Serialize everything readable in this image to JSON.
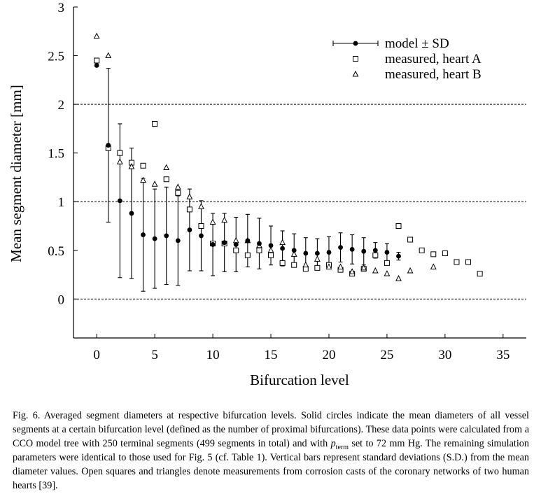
{
  "chart_data": {
    "type": "scatter",
    "xlabel": "Bifurcation level",
    "ylabel": "Mean segment diameter  [mm]",
    "xlim": [
      -2,
      37
    ],
    "ylim": [
      -0.4,
      3
    ],
    "x_ticks": [
      0,
      5,
      10,
      15,
      20,
      25,
      30,
      35
    ],
    "y_ticks": [
      0,
      0.5,
      1,
      1.5,
      2,
      2.5,
      3
    ],
    "y_tick_labels": [
      "0",
      "0.5",
      "1",
      "1.5",
      "2",
      "2.5",
      "3"
    ],
    "reference_lines": [
      0,
      1,
      2
    ],
    "legend": {
      "position": "top-right"
    },
    "series": [
      {
        "name": "model ± SD",
        "marker": "filled-circle",
        "points": [
          {
            "x": 0,
            "y": 2.4,
            "sd": 0
          },
          {
            "x": 1,
            "y": 1.58,
            "sd": 0.79
          },
          {
            "x": 2,
            "y": 1.01,
            "sd": 0.79
          },
          {
            "x": 3,
            "y": 0.88,
            "sd": 0.67
          },
          {
            "x": 4,
            "y": 0.66,
            "sd": 0.58
          },
          {
            "x": 5,
            "y": 0.62,
            "sd": 0.51
          },
          {
            "x": 6,
            "y": 0.65,
            "sd": 0.5
          },
          {
            "x": 7,
            "y": 0.6,
            "sd": 0.46
          },
          {
            "x": 8,
            "y": 0.71,
            "sd": 0.42
          },
          {
            "x": 9,
            "y": 0.65,
            "sd": 0.36
          },
          {
            "x": 10,
            "y": 0.56,
            "sd": 0.32
          },
          {
            "x": 11,
            "y": 0.58,
            "sd": 0.3
          },
          {
            "x": 12,
            "y": 0.56,
            "sd": 0.28
          },
          {
            "x": 13,
            "y": 0.6,
            "sd": 0.27
          },
          {
            "x": 14,
            "y": 0.57,
            "sd": 0.26
          },
          {
            "x": 15,
            "y": 0.55,
            "sd": 0.2
          },
          {
            "x": 16,
            "y": 0.52,
            "sd": 0.18
          },
          {
            "x": 17,
            "y": 0.5,
            "sd": 0.17
          },
          {
            "x": 18,
            "y": 0.47,
            "sd": 0.16
          },
          {
            "x": 19,
            "y": 0.47,
            "sd": 0.15
          },
          {
            "x": 20,
            "y": 0.48,
            "sd": 0.16
          },
          {
            "x": 21,
            "y": 0.53,
            "sd": 0.15
          },
          {
            "x": 22,
            "y": 0.51,
            "sd": 0.15
          },
          {
            "x": 23,
            "y": 0.49,
            "sd": 0.14
          },
          {
            "x": 24,
            "y": 0.5,
            "sd": 0.08
          },
          {
            "x": 25,
            "y": 0.48,
            "sd": 0.09
          },
          {
            "x": 26,
            "y": 0.44,
            "sd": 0.04
          }
        ]
      },
      {
        "name": "measured, heart A",
        "marker": "open-square",
        "points": [
          {
            "x": 0,
            "y": 2.45
          },
          {
            "x": 1,
            "y": 1.55
          },
          {
            "x": 2,
            "y": 1.5
          },
          {
            "x": 3,
            "y": 1.4
          },
          {
            "x": 4,
            "y": 1.37
          },
          {
            "x": 5,
            "y": 1.8
          },
          {
            "x": 6,
            "y": 1.23
          },
          {
            "x": 7,
            "y": 1.09
          },
          {
            "x": 8,
            "y": 0.92
          },
          {
            "x": 9,
            "y": 0.75
          },
          {
            "x": 10,
            "y": 0.57
          },
          {
            "x": 11,
            "y": 0.57
          },
          {
            "x": 12,
            "y": 0.5
          },
          {
            "x": 13,
            "y": 0.45
          },
          {
            "x": 14,
            "y": 0.5
          },
          {
            "x": 15,
            "y": 0.45
          },
          {
            "x": 16,
            "y": 0.37
          },
          {
            "x": 17,
            "y": 0.35
          },
          {
            "x": 18,
            "y": 0.31
          },
          {
            "x": 19,
            "y": 0.32
          },
          {
            "x": 20,
            "y": 0.35
          },
          {
            "x": 21,
            "y": 0.3
          },
          {
            "x": 22,
            "y": 0.26
          },
          {
            "x": 23,
            "y": 0.31
          },
          {
            "x": 24,
            "y": 0.45
          },
          {
            "x": 25,
            "y": 0.37
          },
          {
            "x": 26,
            "y": 0.75
          },
          {
            "x": 27,
            "y": 0.61
          },
          {
            "x": 28,
            "y": 0.5
          },
          {
            "x": 29,
            "y": 0.46
          },
          {
            "x": 30,
            "y": 0.47
          },
          {
            "x": 31,
            "y": 0.38
          },
          {
            "x": 32,
            "y": 0.38
          },
          {
            "x": 33,
            "y": 0.26
          }
        ]
      },
      {
        "name": "measured, heart B",
        "marker": "open-triangle",
        "points": [
          {
            "x": 0,
            "y": 2.7
          },
          {
            "x": 1,
            "y": 2.5
          },
          {
            "x": 2,
            "y": 1.41
          },
          {
            "x": 3,
            "y": 1.36
          },
          {
            "x": 4,
            "y": 1.22
          },
          {
            "x": 5,
            "y": 1.18
          },
          {
            "x": 6,
            "y": 1.35
          },
          {
            "x": 7,
            "y": 1.15
          },
          {
            "x": 8,
            "y": 1.05
          },
          {
            "x": 9,
            "y": 0.95
          },
          {
            "x": 10,
            "y": 0.79
          },
          {
            "x": 11,
            "y": 0.81
          },
          {
            "x": 12,
            "y": 0.6
          },
          {
            "x": 13,
            "y": 0.6
          },
          {
            "x": 14,
            "y": 0.55
          },
          {
            "x": 15,
            "y": 0.5
          },
          {
            "x": 16,
            "y": 0.58
          },
          {
            "x": 17,
            "y": 0.46
          },
          {
            "x": 18,
            "y": 0.35
          },
          {
            "x": 19,
            "y": 0.41
          },
          {
            "x": 20,
            "y": 0.33
          },
          {
            "x": 21,
            "y": 0.33
          },
          {
            "x": 22,
            "y": 0.28
          },
          {
            "x": 23,
            "y": 0.32
          },
          {
            "x": 24,
            "y": 0.29
          },
          {
            "x": 25,
            "y": 0.26
          },
          {
            "x": 26,
            "y": 0.21
          },
          {
            "x": 27,
            "y": 0.29
          },
          {
            "x": 29,
            "y": 0.33
          }
        ]
      }
    ]
  },
  "caption": {
    "part1": "Fig. 6. Averaged segment diameters at respective bifurcation levels. Solid circles indicate the mean diameters of all vessel segments at a certain bifurcation level (defined as the number of proximal bifurcations). These data points were calculated from a CCO model tree with 250 terminal segments (499 segments in total) and with ",
    "p_symbol": "p",
    "p_subscript": "term",
    "part2": " set to 72 mm Hg. The remaining simulation parameters were identical to those used for Fig. 5 (cf. Table 1). Vertical bars represent standard deviations (S.D.) from the mean diameter values. Open squares and triangles denote measurements from corrosion casts of the coronary networks of two human hearts [39]."
  }
}
